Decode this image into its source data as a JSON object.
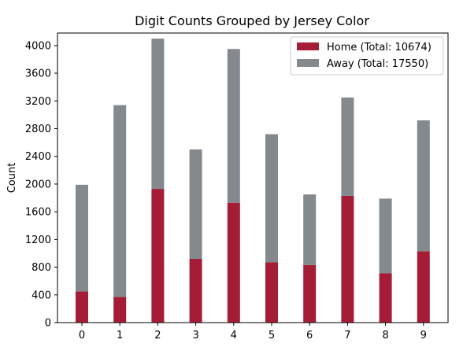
{
  "chart_data": {
    "type": "bar",
    "stacked": true,
    "title": "Digit Counts Grouped by Jersey Color",
    "xlabel": "",
    "ylabel": "Count",
    "categories": [
      "0",
      "1",
      "2",
      "3",
      "4",
      "5",
      "6",
      "7",
      "8",
      "9"
    ],
    "ylim": [
      0,
      4180
    ],
    "yticks": [
      0,
      400,
      800,
      1200,
      1600,
      2000,
      2400,
      2800,
      3200,
      3600,
      4000
    ],
    "grid": false,
    "legend_position": "top-right",
    "series": [
      {
        "name": "Home (Total: 10674)",
        "color": "#a51c36",
        "values": [
          450,
          370,
          1930,
          920,
          1730,
          870,
          830,
          1830,
          710,
          1030
        ]
      },
      {
        "name": "Away (Total: 17550)",
        "color": "#84898e",
        "values": [
          1540,
          2770,
          2170,
          1580,
          2220,
          1850,
          1020,
          1420,
          1080,
          1890
        ]
      }
    ]
  }
}
